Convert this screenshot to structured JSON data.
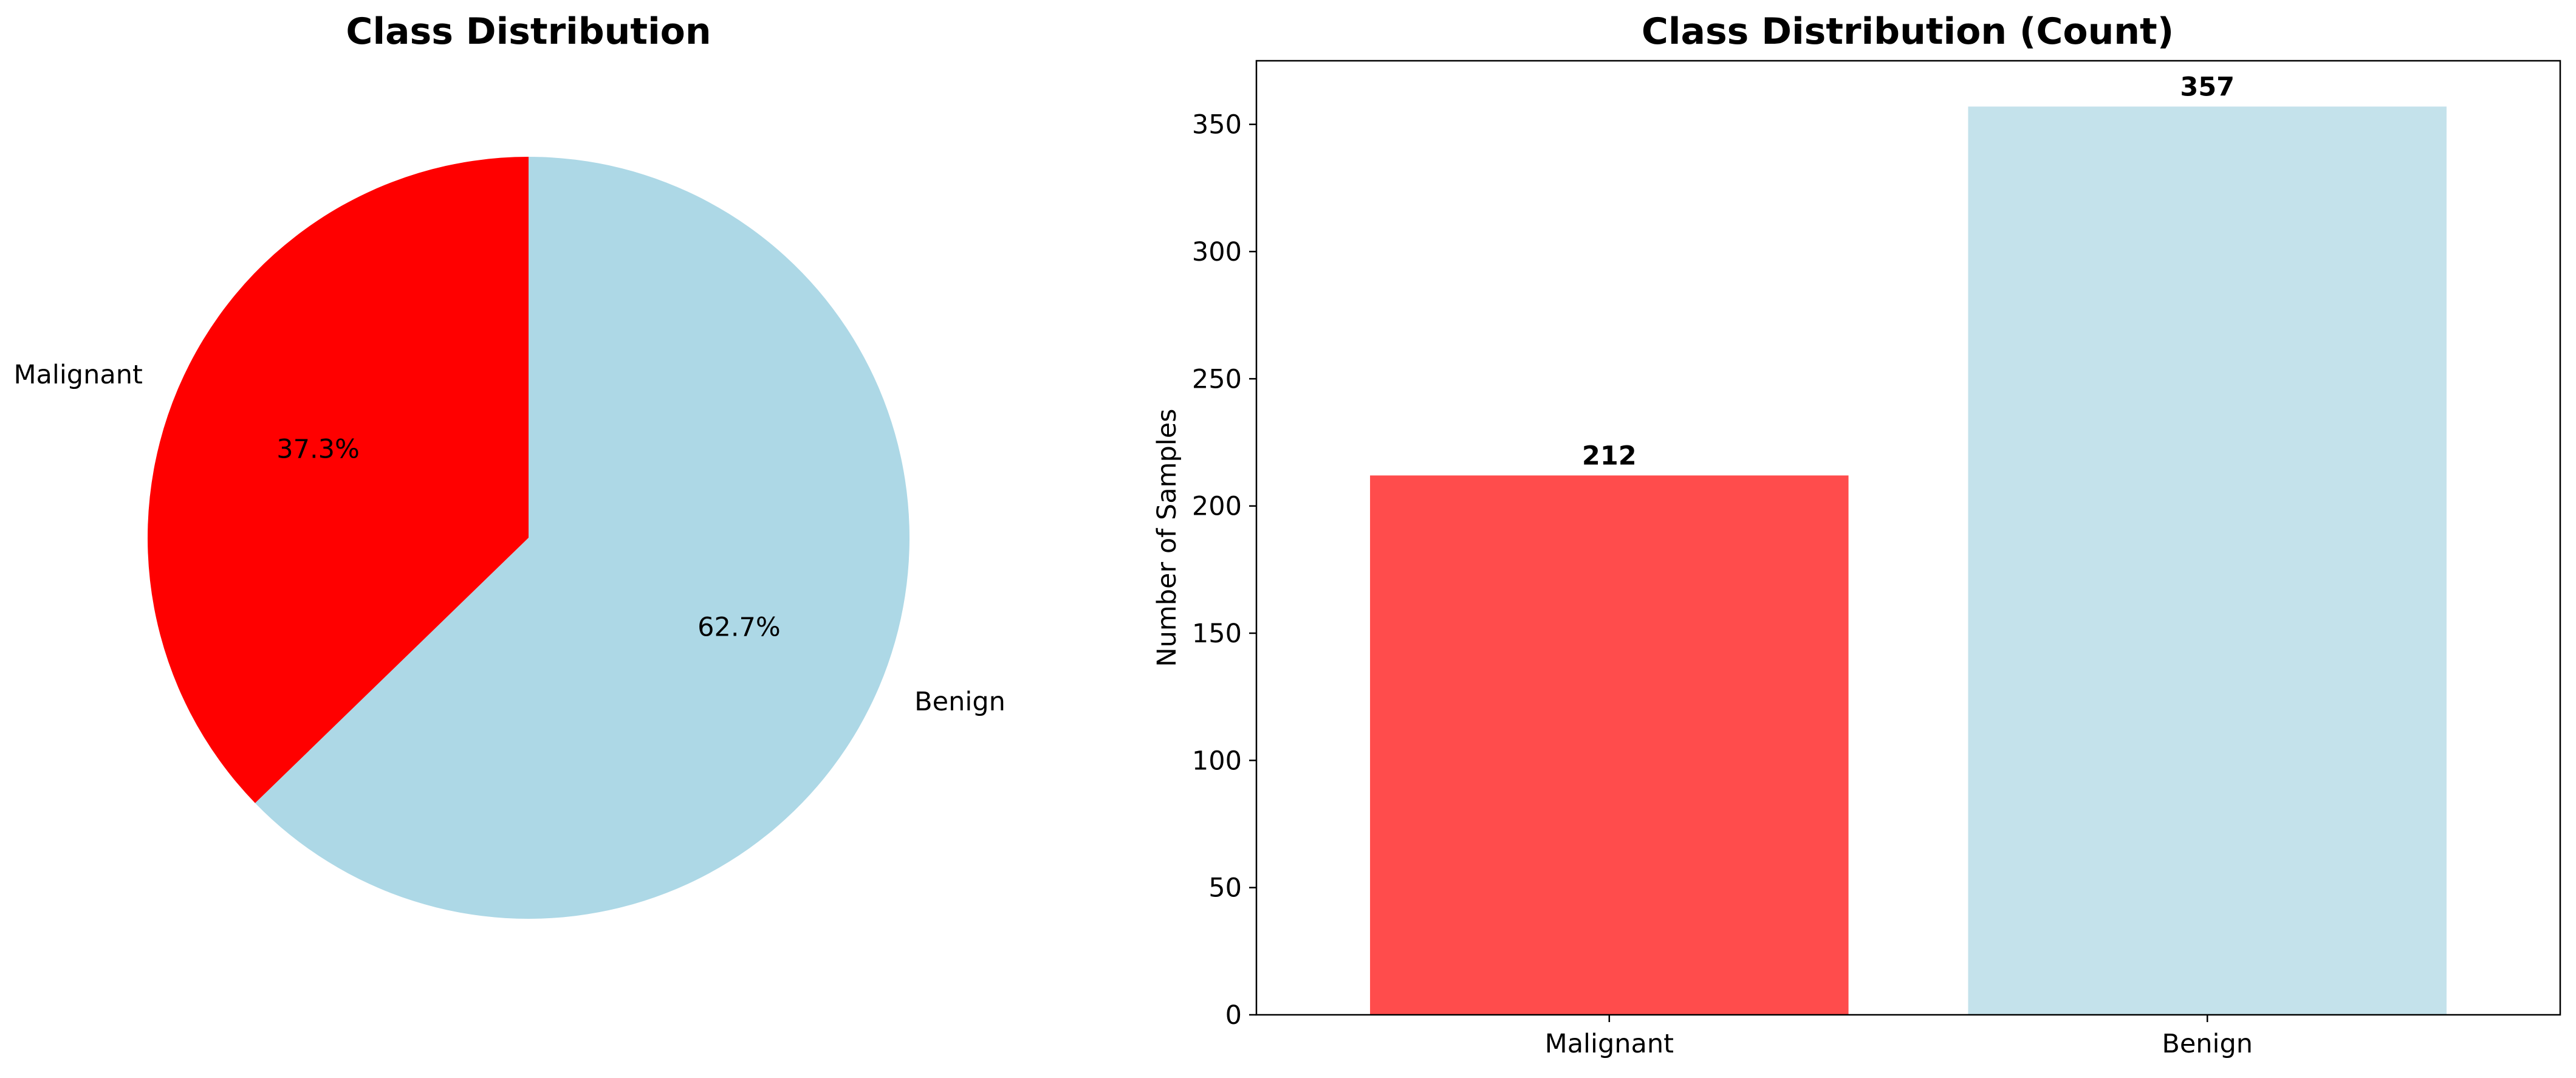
{
  "chart_data": [
    {
      "type": "pie",
      "title": "Class Distribution",
      "categories": [
        "Malignant",
        "Benign"
      ],
      "values": [
        212,
        357
      ],
      "percent_labels": [
        "37.3%",
        "62.7%"
      ],
      "colors": [
        "#ff0000",
        "#add8e6"
      ],
      "start_angle_deg": 90,
      "direction": "counterclockwise"
    },
    {
      "type": "bar",
      "title": "Class Distribution (Count)",
      "categories": [
        "Malignant",
        "Benign"
      ],
      "values": [
        212,
        357
      ],
      "value_labels": [
        "212",
        "357"
      ],
      "colors": [
        "#ff4c4c",
        "#c4e2eb"
      ],
      "xlabel": "",
      "ylabel": "Number of Samples",
      "ylim": [
        0,
        375
      ],
      "yticks": [
        0,
        50,
        100,
        150,
        200,
        250,
        300,
        350
      ],
      "grid": false
    }
  ]
}
